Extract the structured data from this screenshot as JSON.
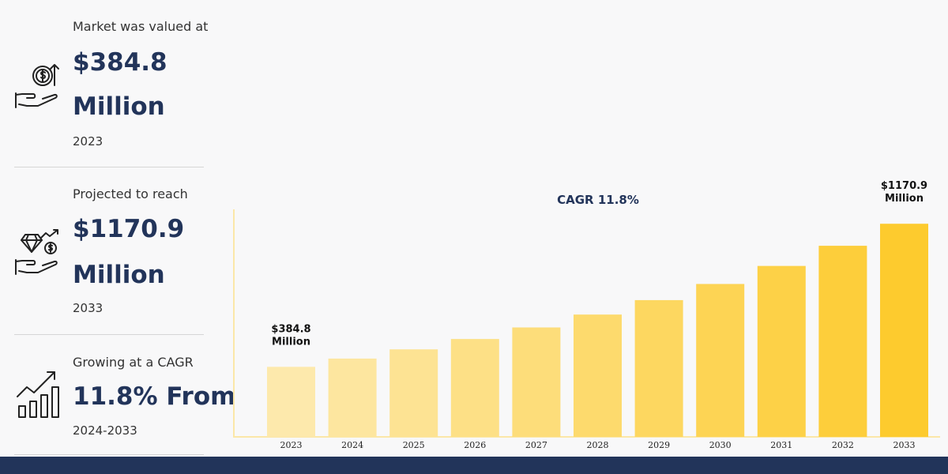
{
  "stats": [
    {
      "label": "Market was valued at",
      "value_line1": "$384.8",
      "value_line2": "Million",
      "period": "2023",
      "icon": "money-hand-icon"
    },
    {
      "label": "Projected to reach",
      "value_line1": "$1170.9",
      "value_line2": "Million",
      "period": "2033",
      "icon": "diamond-hand-icon"
    },
    {
      "label": "Growing at a CAGR",
      "value_line1": "11.8% From",
      "period": "2024-2033",
      "icon": "growth-chart-icon"
    }
  ],
  "colors": {
    "navy": "#22345a",
    "bar_light": "#fde9ac",
    "bar_dark": "#fdcb2e",
    "axis": "#fbe7a8"
  },
  "chart_data": {
    "type": "bar",
    "title": "CAGR 11.8%",
    "categories": [
      "2023",
      "2024",
      "2025",
      "2026",
      "2027",
      "2028",
      "2029",
      "2030",
      "2031",
      "2032",
      "2033"
    ],
    "values": [
      384.8,
      430.2,
      480.9,
      537.7,
      601.1,
      672.0,
      751.3,
      840.0,
      939.1,
      1049.9,
      1170.9
    ],
    "data_labels": [
      {
        "category": "2023",
        "line1": "$384.8",
        "line2": "Million"
      },
      {
        "category": "2033",
        "line1": "$1170.9",
        "line2": "Million"
      }
    ],
    "ylim": [
      0,
      1250
    ],
    "grid": false,
    "legend": "none"
  }
}
